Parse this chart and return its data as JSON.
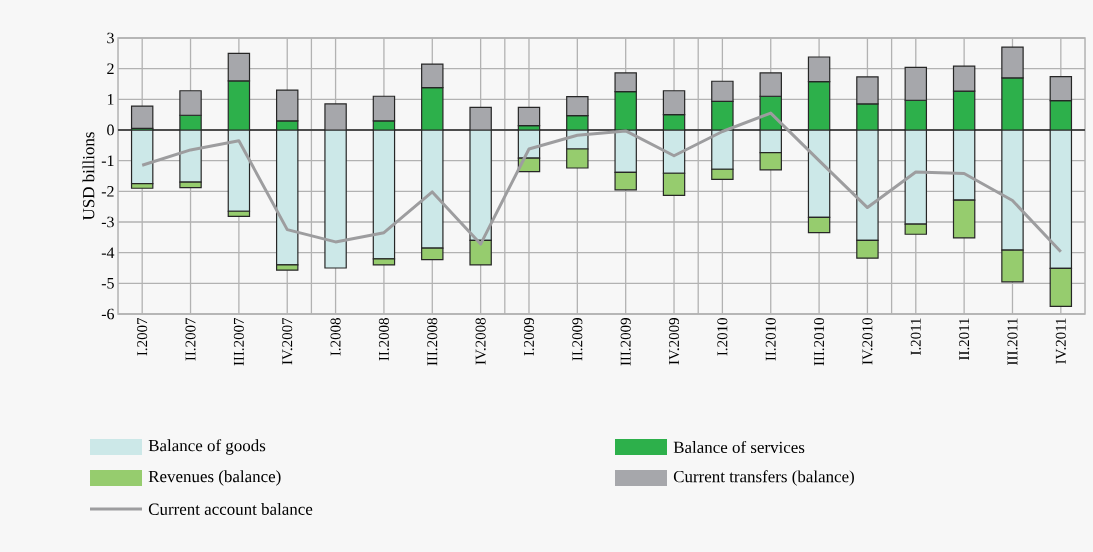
{
  "chart_data": {
    "type": "bar",
    "stacked": true,
    "ylabel": "USD billions",
    "categories": [
      "I.2007",
      "II.2007",
      "III.2007",
      "IV.2007",
      "I.2008",
      "II.2008",
      "III.2008",
      "IV.2008",
      "I.2009",
      "II.2009",
      "III.2009",
      "IV.2009",
      "I.2010",
      "II.2010",
      "III.2010",
      "IV.2010",
      "I.2011",
      "II.2011",
      "III.2011",
      "IV.2011"
    ],
    "series": [
      {
        "name": "Balance of goods",
        "color": "#cce8e8",
        "values": [
          -1.75,
          -1.7,
          -2.65,
          -4.4,
          -4.5,
          -4.2,
          -3.85,
          -3.6,
          -0.92,
          -0.62,
          -1.38,
          -1.41,
          -1.28,
          -0.74,
          -2.85,
          -3.6,
          -3.07,
          -2.29,
          -3.92,
          -4.51
        ]
      },
      {
        "name": "Balance of services",
        "color": "#2db04b",
        "values": [
          0.05,
          0.48,
          1.6,
          0.3,
          0.0,
          0.3,
          1.38,
          0.0,
          0.14,
          0.47,
          1.25,
          0.5,
          0.93,
          1.1,
          1.58,
          0.85,
          0.97,
          1.27,
          1.7,
          0.96
        ]
      },
      {
        "name": "Revenues (balance)",
        "color": "#96cc6e",
        "values": [
          -0.15,
          -0.18,
          -0.17,
          -0.17,
          0.0,
          -0.2,
          -0.38,
          -0.8,
          -0.44,
          -0.62,
          -0.57,
          -0.72,
          -0.33,
          -0.56,
          -0.5,
          -0.58,
          -0.33,
          -1.23,
          -1.03,
          -1.24
        ]
      },
      {
        "name": "Current transfers (balance)",
        "color": "#a6a7ab",
        "values": [
          0.73,
          0.8,
          0.9,
          1.0,
          0.85,
          0.8,
          0.77,
          0.74,
          0.6,
          0.62,
          0.61,
          0.78,
          0.66,
          0.76,
          0.8,
          0.88,
          1.07,
          0.81,
          1.0,
          0.78
        ]
      },
      {
        "name": "Current account balance",
        "type": "line",
        "color": "#9d9d9f",
        "values": [
          -1.15,
          -0.65,
          -0.35,
          -3.25,
          -3.65,
          -3.35,
          -2.02,
          -3.72,
          -0.62,
          -0.17,
          -0.03,
          -0.84,
          -0.05,
          0.55,
          -1.0,
          -2.53,
          -1.37,
          -1.42,
          -2.3,
          -3.97
        ]
      }
    ],
    "ylim": [
      -6,
      3
    ],
    "yticks": [
      -6,
      -5,
      -4,
      -3,
      -2,
      -1,
      0,
      1,
      2,
      3
    ],
    "grid": true,
    "legend": "bottom"
  }
}
